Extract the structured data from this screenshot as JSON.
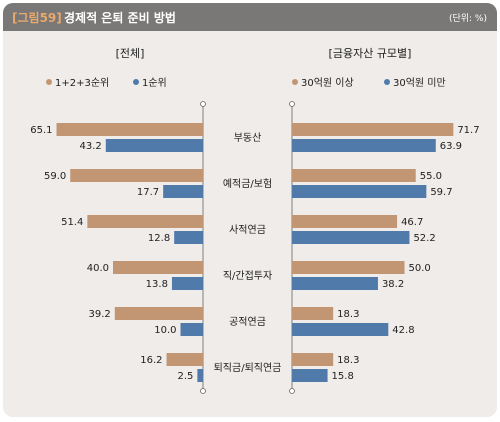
{
  "header": {
    "tag": "[그림59]",
    "title": "경제적 은퇴 준비 방법",
    "unit": "(단위: %)"
  },
  "colors": {
    "tan": "#c29672",
    "blue": "#4f7aaa",
    "header_bg": "#7a7877",
    "tag": "#e8a96a",
    "panel_bg": "#efece9"
  },
  "chart_data": [
    {
      "type": "bar",
      "orientation": "horizontal",
      "direction": "right-to-left",
      "title": "[전체]",
      "categories": [
        "부동산",
        "예적금/보험",
        "사적연금",
        "직/간접투자",
        "공적연금",
        "퇴직금/퇴직연금"
      ],
      "series": [
        {
          "name": "1+2+3순위",
          "values": [
            65.1,
            59.0,
            51.4,
            40.0,
            39.2,
            16.2
          ],
          "color": "#c29672"
        },
        {
          "name": "1순위",
          "values": [
            43.2,
            17.7,
            12.8,
            13.8,
            10.0,
            2.5
          ],
          "color": "#4f7aaa"
        }
      ],
      "legend": "top",
      "grid": false
    },
    {
      "type": "bar",
      "orientation": "horizontal",
      "direction": "left-to-right",
      "title": "[금융자산 규모별]",
      "categories": [
        "부동산",
        "예적금/보험",
        "사적연금",
        "직/간접투자",
        "공적연금",
        "퇴직금/퇴직연금"
      ],
      "series": [
        {
          "name": "30억원 이상",
          "values": [
            71.7,
            55.0,
            46.7,
            50.0,
            18.3,
            18.3
          ],
          "color": "#c29672"
        },
        {
          "name": "30억원 미만",
          "values": [
            63.9,
            59.7,
            52.2,
            38.2,
            42.8,
            15.8
          ],
          "color": "#4f7aaa"
        }
      ],
      "legend": "top",
      "grid": false
    }
  ]
}
